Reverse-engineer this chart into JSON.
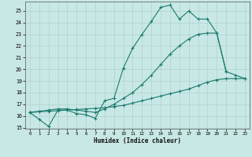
{
  "xlabel": "Humidex (Indice chaleur)",
  "bg_color": "#c8e8e5",
  "grid_color": "#a8ccc9",
  "line_color": "#1a7a6e",
  "xlim": [
    -0.5,
    23.5
  ],
  "ylim": [
    14.9,
    25.8
  ],
  "xticks": [
    0,
    1,
    2,
    3,
    4,
    5,
    6,
    7,
    8,
    9,
    10,
    11,
    12,
    13,
    14,
    15,
    16,
    17,
    18,
    19,
    20,
    21,
    22,
    23
  ],
  "yticks": [
    15,
    16,
    17,
    18,
    19,
    20,
    21,
    22,
    23,
    24,
    25
  ],
  "line1_x": [
    0,
    1,
    2,
    3,
    4,
    5,
    6,
    7,
    8,
    9,
    10,
    11,
    12,
    13,
    14,
    15,
    16,
    17,
    18,
    19,
    20,
    21
  ],
  "line1_y": [
    16.3,
    15.7,
    15.1,
    16.5,
    16.5,
    16.2,
    16.1,
    15.8,
    17.3,
    17.5,
    20.1,
    21.8,
    23.0,
    24.1,
    25.3,
    25.5,
    24.3,
    25.0,
    24.3,
    24.3,
    23.1,
    19.8
  ],
  "line2_x": [
    0,
    1,
    2,
    3,
    4,
    5,
    6,
    7,
    8,
    9,
    10,
    11,
    12,
    13,
    14,
    15,
    16,
    17,
    18,
    19,
    20,
    21,
    22,
    23
  ],
  "line2_y": [
    16.3,
    16.4,
    16.5,
    16.6,
    16.6,
    16.5,
    16.4,
    16.3,
    16.6,
    17.0,
    17.5,
    18.0,
    18.7,
    19.5,
    20.4,
    21.3,
    22.0,
    22.6,
    23.0,
    23.1,
    23.1,
    19.8,
    19.5,
    19.2
  ],
  "line3_x": [
    0,
    1,
    2,
    3,
    4,
    5,
    6,
    7,
    8,
    9,
    10,
    11,
    12,
    13,
    14,
    15,
    16,
    17,
    18,
    19,
    20,
    21,
    22,
    23
  ],
  "line3_y": [
    16.3,
    16.35,
    16.4,
    16.45,
    16.5,
    16.55,
    16.6,
    16.65,
    16.7,
    16.8,
    16.9,
    17.1,
    17.3,
    17.5,
    17.7,
    17.9,
    18.1,
    18.3,
    18.6,
    18.9,
    19.1,
    19.2,
    19.2,
    19.2
  ]
}
